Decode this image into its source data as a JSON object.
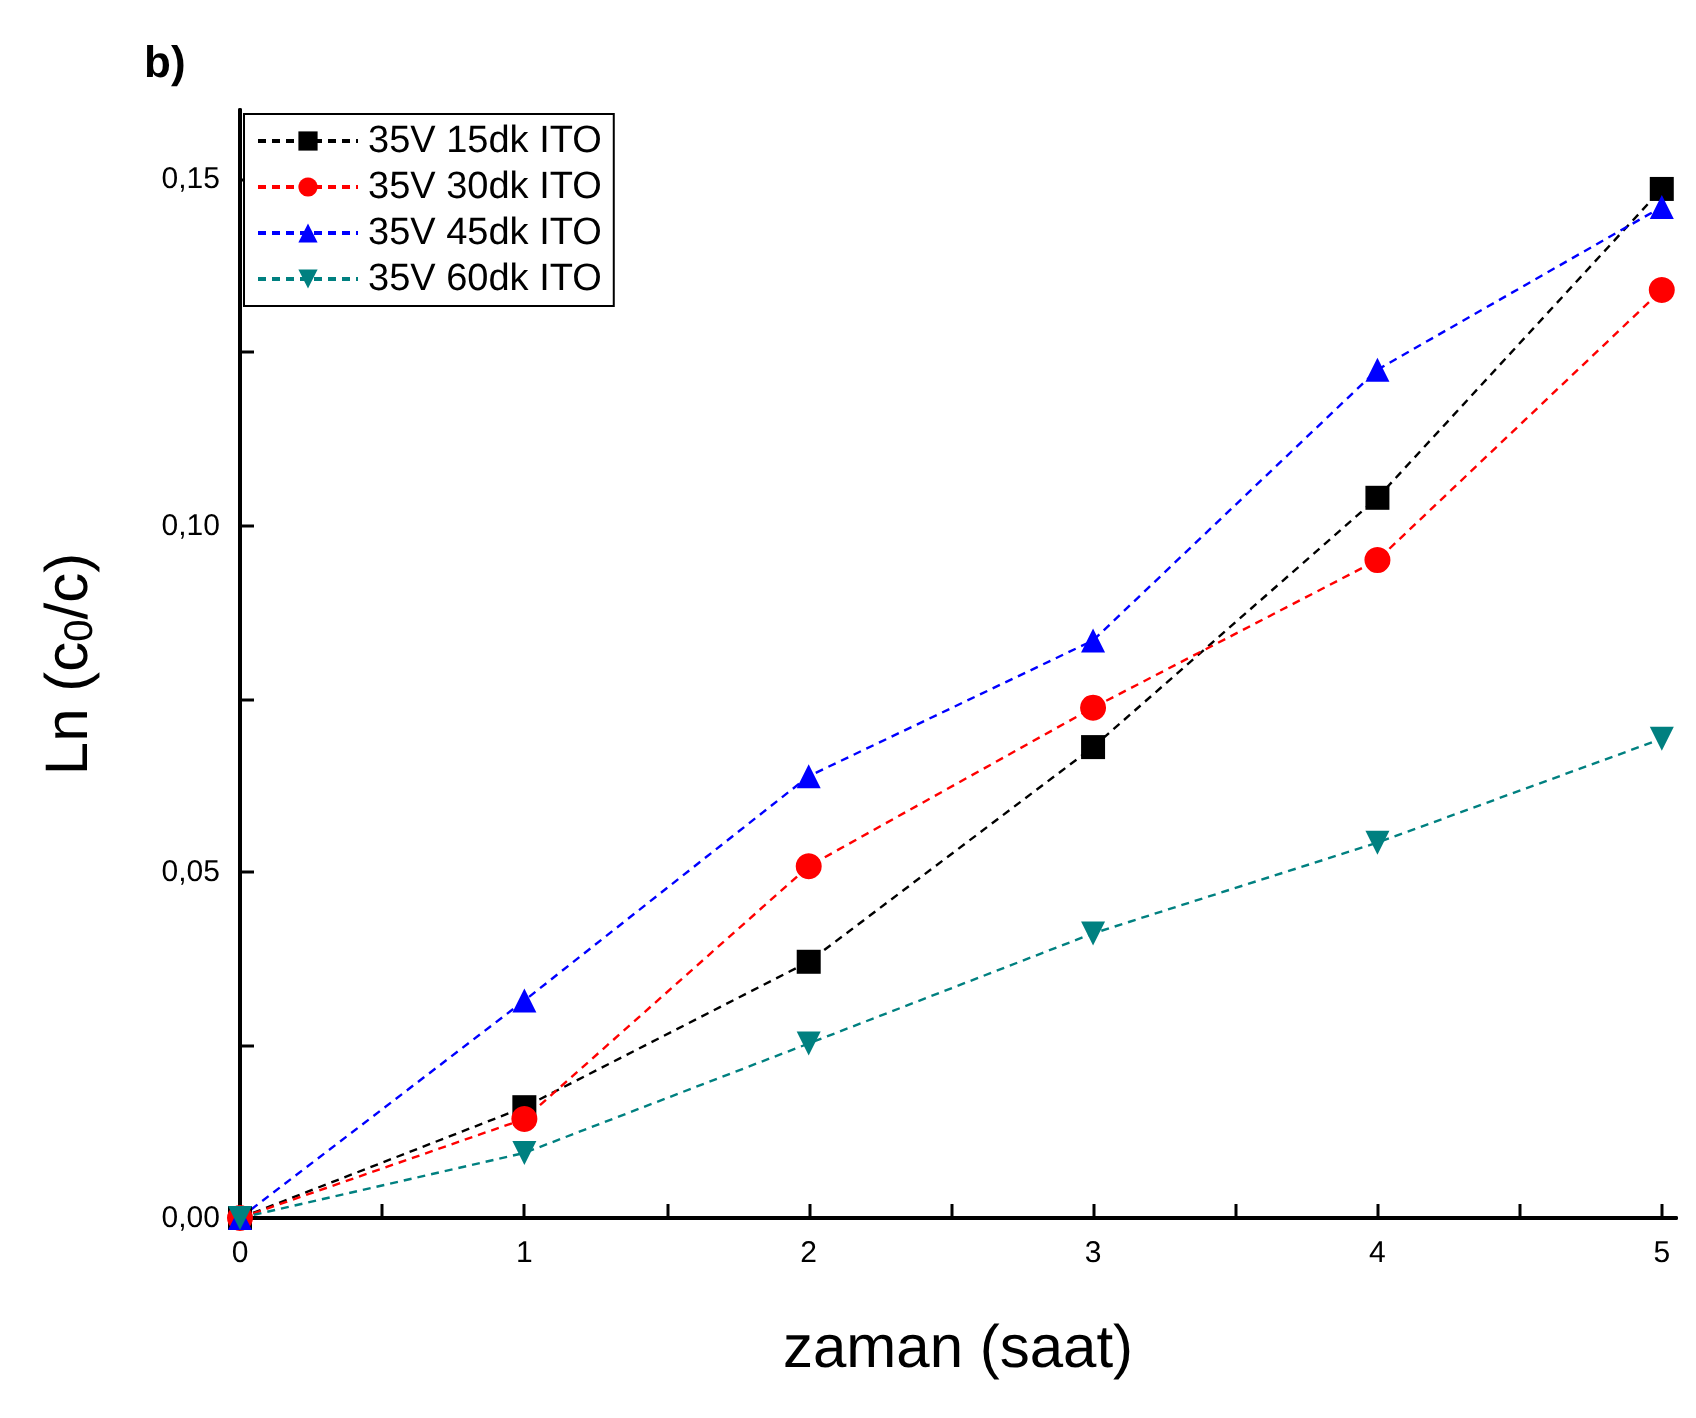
{
  "chart_data": {
    "type": "line",
    "annotations": [
      "b)"
    ],
    "xlabel": "zaman (saat)",
    "ylabel": "Ln (c$_{0}$/c)",
    "x": [
      0,
      1,
      2,
      3,
      4,
      5
    ],
    "series": [
      {
        "name": "35V 15dk ITO",
        "color": "#000000",
        "marker": "square",
        "values": [
          0,
          0.016,
          0.037,
          0.068,
          0.104,
          0.1486
        ]
      },
      {
        "name": "35V 30dk ITO",
        "color": "#ff0000",
        "marker": "circle",
        "values": [
          0,
          0.0143,
          0.0508,
          0.0737,
          0.095,
          0.134
        ]
      },
      {
        "name": "35V 45dk ITO",
        "color": "#0000ff",
        "marker": "triangle",
        "values": [
          0,
          0.0314,
          0.0638,
          0.0834,
          0.1225,
          0.146
        ]
      },
      {
        "name": "35V 60dk ITO",
        "color": "#008080",
        "marker": "triangle-down",
        "values": [
          0,
          0.0094,
          0.0252,
          0.0411,
          0.0542,
          0.0692
        ]
      }
    ],
    "xlim": [
      0,
      5.05
    ],
    "xticks": [
      0,
      {
        "value": 0.5,
        "label": null
      },
      1,
      {
        "value": 1.5,
        "label": null
      },
      2,
      {
        "value": 2.5,
        "label": null
      },
      3,
      {
        "value": 3.5,
        "label": null
      },
      4,
      {
        "value": 4.5,
        "label": null
      },
      5
    ],
    "ylim": [
      0,
      0.16
    ],
    "yticks": [
      {
        "value": 0,
        "label": "0,00"
      },
      {
        "value": 0.025,
        "label": null
      },
      {
        "value": 0.05,
        "label": "0,05"
      },
      {
        "value": 0.075,
        "label": null
      },
      {
        "value": 0.1,
        "label": "0,10"
      },
      {
        "value": 0.125,
        "label": null
      },
      {
        "value": 0.15,
        "label": "0,15"
      }
    ],
    "legend": "top left",
    "grid": false,
    "line_style": "dashed"
  }
}
